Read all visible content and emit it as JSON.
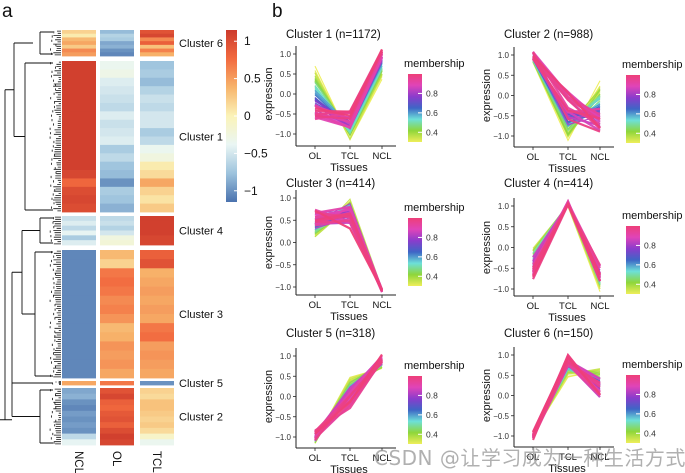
{
  "chart_data": [
    {
      "type": "heatmap",
      "panel_label": "a",
      "columns": [
        "NCL",
        "OL",
        "TCL"
      ],
      "color_scale": {
        "ticks": [
          "1",
          "0.5",
          "0",
          "−0.5",
          "−1"
        ],
        "tick_values": [
          1,
          0.5,
          0,
          -0.5,
          -1
        ],
        "range": [
          -1.15,
          1.15
        ],
        "stops": [
          "#4a72ae",
          "#9dc3dd",
          "#eaf6f4",
          "#fbf3b8",
          "#f7b46b",
          "#f26a3f",
          "#cc3a2c"
        ]
      },
      "clusters": [
        {
          "label": "Cluster 6",
          "n": 150,
          "rows": [
            [
              0.2,
              -0.8,
              0.95
            ],
            [
              0.05,
              -0.65,
              1.05
            ],
            [
              0.35,
              -0.7,
              0.6
            ],
            [
              0.45,
              -0.9,
              0.85
            ],
            [
              0.25,
              -0.85,
              0.3
            ],
            [
              0.6,
              -1.0,
              0.65
            ],
            [
              0.5,
              -1.05,
              0.4
            ]
          ]
        },
        {
          "label": "Cluster 1",
          "n": 1172,
          "rows": [
            [
              1.1,
              -0.35,
              -0.75
            ],
            [
              1.1,
              -0.3,
              -0.7
            ],
            [
              1.1,
              -0.45,
              -0.8
            ],
            [
              1.1,
              -0.5,
              -0.65
            ],
            [
              1.1,
              -0.55,
              -0.55
            ],
            [
              1.1,
              -0.6,
              -0.6
            ],
            [
              1.1,
              -0.45,
              -0.5
            ],
            [
              1.1,
              -0.55,
              -0.5
            ],
            [
              1.1,
              -0.5,
              -0.7
            ],
            [
              1.1,
              -0.45,
              -0.6
            ],
            [
              1.1,
              -0.7,
              -0.35
            ],
            [
              1.1,
              -0.6,
              -0.25
            ],
            [
              1.1,
              -0.75,
              0.05
            ],
            [
              1.05,
              -0.8,
              0.15
            ],
            [
              0.8,
              -1.0,
              0.45
            ],
            [
              1.0,
              -0.7,
              0.2
            ],
            [
              1.05,
              -0.75,
              0.1
            ],
            [
              1.0,
              -0.85,
              0.25
            ]
          ]
        },
        {
          "label": "Cluster 4",
          "n": 414,
          "rows": [
            [
              -0.55,
              -0.6,
              1.1
            ],
            [
              -0.45,
              -0.55,
              1.1
            ],
            [
              -0.6,
              -0.65,
              1.1
            ],
            [
              -0.4,
              -0.5,
              1.1
            ],
            [
              -0.7,
              -0.25,
              1.05
            ],
            [
              -0.45,
              -0.2,
              1.05
            ]
          ]
        },
        {
          "label": "Cluster 3",
          "n": 414,
          "rows": [
            [
              -1.05,
              0.35,
              0.85
            ],
            [
              -1.05,
              0.2,
              0.95
            ],
            [
              -1.05,
              0.7,
              0.4
            ],
            [
              -1.05,
              0.75,
              0.45
            ],
            [
              -1.05,
              0.7,
              0.5
            ],
            [
              -1.05,
              0.6,
              0.45
            ],
            [
              -1.05,
              0.65,
              0.5
            ],
            [
              -1.05,
              0.55,
              0.45
            ],
            [
              -1.05,
              0.35,
              0.7
            ],
            [
              -1.05,
              0.4,
              0.75
            ],
            [
              -1.05,
              0.55,
              0.5
            ],
            [
              -1.05,
              0.5,
              0.55
            ],
            [
              -1.05,
              0.55,
              0.5
            ],
            [
              -1.05,
              0.45,
              0.45
            ]
          ]
        },
        {
          "label": "Cluster 5",
          "n": 318,
          "rows": [
            [
              0.45,
              0.7,
              -1.0
            ]
          ]
        },
        {
          "label": "Cluster 2",
          "n": 988,
          "rows": [
            [
              -0.9,
              0.95,
              0.2
            ],
            [
              -0.85,
              1.05,
              0.15
            ],
            [
              -1.0,
              0.85,
              0.3
            ],
            [
              -1.05,
              0.8,
              0.3
            ],
            [
              -0.95,
              0.9,
              0.25
            ],
            [
              -1.0,
              0.95,
              0.2
            ],
            [
              -0.95,
              0.85,
              0.25
            ],
            [
              -1.0,
              1.0,
              0.15
            ],
            [
              -0.6,
              1.1,
              -0.1
            ],
            [
              -0.4,
              1.05,
              -0.35
            ]
          ]
        }
      ],
      "row_dendrogram": true
    },
    {
      "type": "line",
      "panel_label": "b",
      "facets": [
        {
          "title": "Cluster 1  (n=1172)",
          "core": [
            -0.55,
            -0.6,
            1.05
          ],
          "low": [
            0.7,
            -1.15,
            0.4
          ],
          "spread": [
            0.2,
            0.2,
            0.1
          ]
        },
        {
          "title": "Cluster 2  (n=988)",
          "core": [
            1.0,
            -0.2,
            -0.7
          ],
          "low": [
            0.8,
            -1.1,
            0.3
          ],
          "spread": [
            0.1,
            0.4,
            0.3
          ]
        },
        {
          "title": "Cluster 3  (n=414)",
          "core": [
            0.6,
            0.55,
            -1.1
          ],
          "low": [
            0.1,
            0.95,
            -1.05
          ],
          "spread": [
            0.2,
            0.25,
            0.05
          ]
        },
        {
          "title": "Cluster 4  (n=414)",
          "core": [
            -0.55,
            1.08,
            -0.6
          ],
          "low": [
            0.0,
            1.0,
            -1.0
          ],
          "spread": [
            0.25,
            0.05,
            0.2
          ]
        },
        {
          "title": "Cluster 5  (n=318)",
          "core": [
            -0.95,
            -0.1,
            0.95
          ],
          "low": [
            -1.15,
            0.45,
            0.7
          ],
          "spread": [
            0.12,
            0.25,
            0.12
          ]
        },
        {
          "title": "Cluster 6  (n=150)",
          "core": [
            -1.0,
            0.9,
            0.1
          ],
          "low": [
            -0.95,
            0.5,
            0.65
          ],
          "spread": [
            0.1,
            0.15,
            0.25
          ]
        }
      ],
      "x_categories": [
        "OL",
        "TCL",
        "NCL"
      ],
      "xlabel": "Tissues",
      "ylabel": "expression",
      "y_ticks": [
        "1.0",
        "0.5",
        "0.0",
        "−0.5",
        "−1.0"
      ],
      "y_tick_values": [
        1.0,
        0.5,
        0.0,
        -0.5,
        -1.0
      ],
      "ylim": [
        -1.2,
        1.2
      ],
      "legend": {
        "title": "membership",
        "ticks": [
          "0.8",
          "0.6",
          "0.4"
        ],
        "tick_values": [
          0.8,
          0.6,
          0.4
        ],
        "range": [
          0.3,
          1.0
        ],
        "stops": [
          "#eeee5a",
          "#8fd63a",
          "#6de0d8",
          "#3e66c6",
          "#8a3ccc",
          "#e044b8",
          "#ee3f78"
        ],
        "placement": "right"
      }
    }
  ],
  "watermark": "CSDN @让学习成为一种生活方式"
}
